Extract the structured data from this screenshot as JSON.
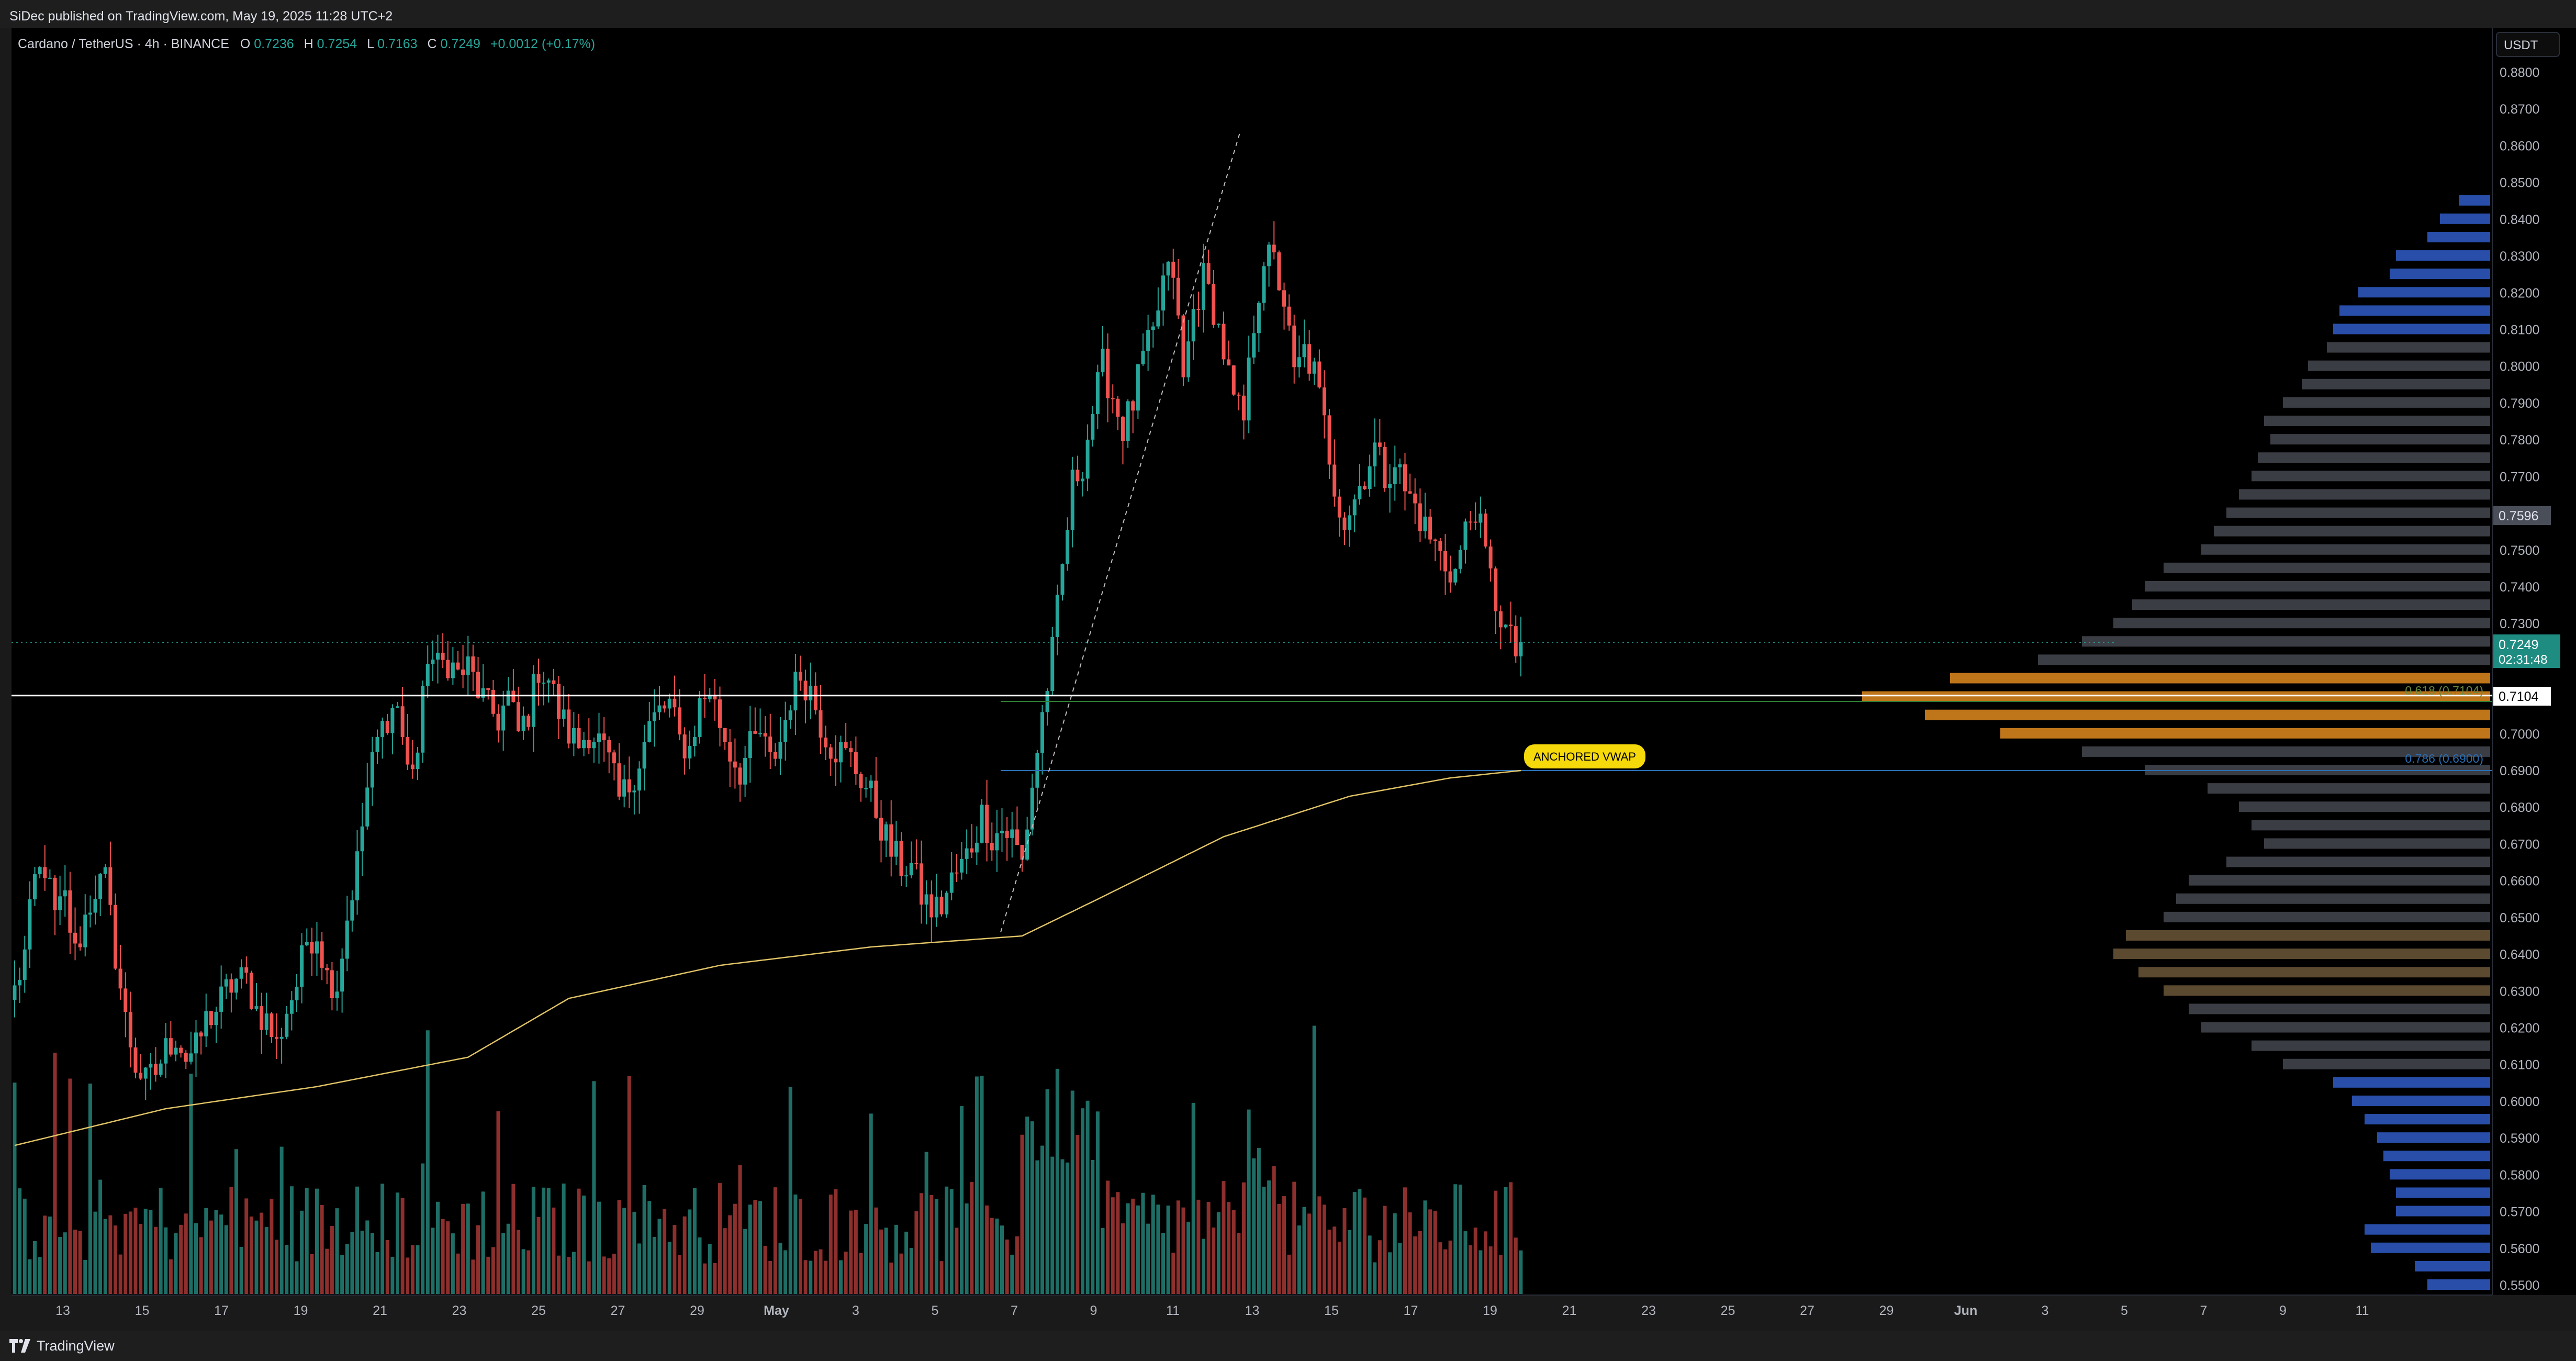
{
  "header": {
    "published": "SiDec published on TradingView.com, May 19, 2025 11:28 UTC+2"
  },
  "footer": {
    "brand": "TradingView"
  },
  "symbol_info": {
    "pair": "Cardano / TetherUS · 4h · BINANCE",
    "o_label": "O",
    "o_value": "0.7236",
    "h_label": "H",
    "h_value": "0.7254",
    "l_label": "L",
    "l_value": "0.7163",
    "c_label": "C",
    "c_value": "0.7249",
    "change": "+0.0012 (+0.17%)"
  },
  "currency_button": "USDT",
  "colors": {
    "up": "#26a69a",
    "down": "#ef5350",
    "vwap": "#e0c366",
    "profile_gray": "#454850",
    "profile_blue": "#2f5cc8",
    "profile_orange": "#e08a1e",
    "fib_green": "#2e7d32",
    "fib_blue": "#2a6fb5"
  },
  "price_badges": {
    "p1": "0.7596",
    "current": "0.7249",
    "countdown": "02:31:48",
    "line": "0.7104"
  },
  "annotations": {
    "anchored_vwap": "ANCHORED VWAP",
    "fib_786": "0.786 (0.6900)",
    "fib_618": "0.618 (0.7104)"
  },
  "chart_data": {
    "type": "candlestick",
    "symbol": "ADAUSDT",
    "interval": "4h",
    "ylim": [
      0.545,
      0.885
    ],
    "y_ticks": [
      "0.8800",
      "0.8700",
      "0.8600",
      "0.8500",
      "0.8400",
      "0.8300",
      "0.8200",
      "0.8100",
      "0.8000",
      "0.7900",
      "0.7800",
      "0.7700",
      "0.7600",
      "0.7500",
      "0.7400",
      "0.7300",
      "0.7200",
      "0.7100",
      "0.7000",
      "0.6900",
      "0.6800",
      "0.6700",
      "0.6600",
      "0.6500",
      "0.6400",
      "0.6300",
      "0.6200",
      "0.6100",
      "0.6000",
      "0.5900",
      "0.5800",
      "0.5700",
      "0.5600",
      "0.5500"
    ],
    "x_tick_labels": [
      "13",
      "15",
      "17",
      "19",
      "21",
      "23",
      "25",
      "27",
      "29",
      "May",
      "3",
      "5",
      "7",
      "9",
      "11",
      "13",
      "15",
      "17",
      "19",
      "21",
      "23",
      "25",
      "27",
      "29",
      "Jun",
      "3",
      "5",
      "7",
      "9",
      "11"
    ],
    "price_series_knots": [
      [
        0,
        0.63
      ],
      [
        2,
        0.64
      ],
      [
        4,
        0.66
      ],
      [
        6,
        0.664
      ],
      [
        8,
        0.65
      ],
      [
        10,
        0.655
      ],
      [
        12,
        0.64
      ],
      [
        14,
        0.65
      ],
      [
        16,
        0.658
      ],
      [
        18,
        0.66
      ],
      [
        20,
        0.64
      ],
      [
        22,
        0.622
      ],
      [
        24,
        0.61
      ],
      [
        26,
        0.605
      ],
      [
        28,
        0.608
      ],
      [
        30,
        0.614
      ],
      [
        32,
        0.618
      ],
      [
        34,
        0.612
      ],
      [
        36,
        0.614
      ],
      [
        38,
        0.622
      ],
      [
        40,
        0.625
      ],
      [
        42,
        0.63
      ],
      [
        44,
        0.633
      ],
      [
        46,
        0.633
      ],
      [
        48,
        0.625
      ],
      [
        50,
        0.622
      ],
      [
        52,
        0.615
      ],
      [
        54,
        0.625
      ],
      [
        56,
        0.632
      ],
      [
        58,
        0.644
      ],
      [
        60,
        0.646
      ],
      [
        62,
        0.634
      ],
      [
        64,
        0.632
      ],
      [
        66,
        0.65
      ],
      [
        68,
        0.665
      ],
      [
        70,
        0.685
      ],
      [
        72,
        0.698
      ],
      [
        74,
        0.705
      ],
      [
        76,
        0.708
      ],
      [
        78,
        0.69
      ],
      [
        80,
        0.695
      ],
      [
        82,
        0.722
      ],
      [
        84,
        0.718
      ],
      [
        86,
        0.72
      ],
      [
        88,
        0.716
      ],
      [
        90,
        0.718
      ],
      [
        92,
        0.712
      ],
      [
        94,
        0.707
      ],
      [
        96,
        0.704
      ],
      [
        98,
        0.71
      ],
      [
        100,
        0.7
      ],
      [
        102,
        0.706
      ],
      [
        104,
        0.718
      ],
      [
        106,
        0.715
      ],
      [
        108,
        0.706
      ],
      [
        110,
        0.7
      ],
      [
        112,
        0.697
      ],
      [
        114,
        0.701
      ],
      [
        116,
        0.698
      ],
      [
        118,
        0.692
      ],
      [
        120,
        0.682
      ],
      [
        122,
        0.686
      ],
      [
        124,
        0.693
      ],
      [
        126,
        0.702
      ],
      [
        128,
        0.706
      ],
      [
        130,
        0.708
      ],
      [
        132,
        0.698
      ],
      [
        134,
        0.696
      ],
      [
        136,
        0.708
      ],
      [
        138,
        0.712
      ],
      [
        140,
        0.703
      ],
      [
        142,
        0.695
      ],
      [
        144,
        0.69
      ],
      [
        146,
        0.696
      ],
      [
        148,
        0.7
      ],
      [
        150,
        0.692
      ],
      [
        152,
        0.698
      ],
      [
        154,
        0.71
      ],
      [
        156,
        0.716
      ],
      [
        158,
        0.712
      ],
      [
        160,
        0.703
      ],
      [
        162,
        0.697
      ],
      [
        164,
        0.695
      ],
      [
        166,
        0.693
      ],
      [
        168,
        0.688
      ],
      [
        170,
        0.683
      ],
      [
        172,
        0.675
      ],
      [
        174,
        0.668
      ],
      [
        176,
        0.664
      ],
      [
        178,
        0.664
      ],
      [
        180,
        0.656
      ],
      [
        182,
        0.652
      ],
      [
        184,
        0.653
      ],
      [
        186,
        0.66
      ],
      [
        188,
        0.664
      ],
      [
        190,
        0.67
      ],
      [
        192,
        0.678
      ],
      [
        194,
        0.672
      ],
      [
        196,
        0.674
      ],
      [
        198,
        0.672
      ],
      [
        200,
        0.665
      ],
      [
        202,
        0.686
      ],
      [
        204,
        0.705
      ],
      [
        206,
        0.722
      ],
      [
        208,
        0.745
      ],
      [
        210,
        0.768
      ],
      [
        212,
        0.774
      ],
      [
        214,
        0.788
      ],
      [
        216,
        0.8
      ],
      [
        218,
        0.792
      ],
      [
        220,
        0.783
      ],
      [
        222,
        0.79
      ],
      [
        224,
        0.802
      ],
      [
        226,
        0.808
      ],
      [
        228,
        0.823
      ],
      [
        230,
        0.826
      ],
      [
        232,
        0.796
      ],
      [
        234,
        0.815
      ],
      [
        236,
        0.824
      ],
      [
        238,
        0.816
      ],
      [
        240,
        0.804
      ],
      [
        242,
        0.79
      ],
      [
        244,
        0.785
      ],
      [
        246,
        0.812
      ],
      [
        248,
        0.83
      ],
      [
        250,
        0.828
      ],
      [
        252,
        0.818
      ],
      [
        254,
        0.797
      ],
      [
        256,
        0.804
      ],
      [
        258,
        0.798
      ],
      [
        260,
        0.784
      ],
      [
        262,
        0.768
      ],
      [
        264,
        0.758
      ],
      [
        266,
        0.764
      ],
      [
        268,
        0.771
      ],
      [
        270,
        0.778
      ],
      [
        272,
        0.77
      ],
      [
        274,
        0.775
      ],
      [
        276,
        0.766
      ],
      [
        278,
        0.762
      ],
      [
        280,
        0.756
      ],
      [
        282,
        0.751
      ],
      [
        284,
        0.746
      ],
      [
        286,
        0.744
      ],
      [
        288,
        0.755
      ],
      [
        290,
        0.762
      ],
      [
        292,
        0.748
      ],
      [
        294,
        0.736
      ],
      [
        296,
        0.728
      ],
      [
        298,
        0.722
      ],
      [
        299,
        0.7249
      ]
    ],
    "volume_range": [
      0,
      90
    ],
    "vwap_label": "ANCHORED VWAP",
    "horizontal_levels": [
      {
        "price": 0.7249,
        "label": "0.7249"
      },
      {
        "price": 0.7104,
        "label": "0.7104"
      },
      {
        "price": 0.7596,
        "label": "0.7596"
      },
      {
        "price": 0.69,
        "label": "0.786 (0.6900)"
      }
    ],
    "volume_profile": [
      {
        "price": 0.845,
        "size": 0.05
      },
      {
        "price": 0.84,
        "size": 0.08
      },
      {
        "price": 0.835,
        "size": 0.1
      },
      {
        "price": 0.83,
        "size": 0.15
      },
      {
        "price": 0.825,
        "size": 0.16
      },
      {
        "price": 0.82,
        "size": 0.21
      },
      {
        "price": 0.815,
        "size": 0.24
      },
      {
        "price": 0.81,
        "size": 0.25
      },
      {
        "price": 0.805,
        "size": 0.26
      },
      {
        "price": 0.8,
        "size": 0.29
      },
      {
        "price": 0.795,
        "size": 0.3
      },
      {
        "price": 0.79,
        "size": 0.33
      },
      {
        "price": 0.785,
        "size": 0.36
      },
      {
        "price": 0.78,
        "size": 0.35
      },
      {
        "price": 0.775,
        "size": 0.37
      },
      {
        "price": 0.77,
        "size": 0.38
      },
      {
        "price": 0.765,
        "size": 0.4
      },
      {
        "price": 0.76,
        "size": 0.42
      },
      {
        "price": 0.755,
        "size": 0.44
      },
      {
        "price": 0.75,
        "size": 0.46
      },
      {
        "price": 0.745,
        "size": 0.52
      },
      {
        "price": 0.74,
        "size": 0.55
      },
      {
        "price": 0.735,
        "size": 0.57
      },
      {
        "price": 0.73,
        "size": 0.6
      },
      {
        "price": 0.725,
        "size": 0.65
      },
      {
        "price": 0.72,
        "size": 0.72
      },
      {
        "price": 0.715,
        "size": 0.86
      },
      {
        "price": 0.71,
        "size": 1.0
      },
      {
        "price": 0.705,
        "size": 0.9
      },
      {
        "price": 0.7,
        "size": 0.78
      },
      {
        "price": 0.695,
        "size": 0.65
      },
      {
        "price": 0.69,
        "size": 0.55
      },
      {
        "price": 0.685,
        "size": 0.45
      },
      {
        "price": 0.68,
        "size": 0.4
      },
      {
        "price": 0.675,
        "size": 0.38
      },
      {
        "price": 0.67,
        "size": 0.36
      },
      {
        "price": 0.665,
        "size": 0.42
      },
      {
        "price": 0.66,
        "size": 0.48
      },
      {
        "price": 0.655,
        "size": 0.5
      },
      {
        "price": 0.65,
        "size": 0.52
      },
      {
        "price": 0.645,
        "size": 0.58
      },
      {
        "price": 0.64,
        "size": 0.6
      },
      {
        "price": 0.635,
        "size": 0.56
      },
      {
        "price": 0.63,
        "size": 0.52
      },
      {
        "price": 0.625,
        "size": 0.48
      },
      {
        "price": 0.62,
        "size": 0.46
      },
      {
        "price": 0.615,
        "size": 0.38
      },
      {
        "price": 0.61,
        "size": 0.33
      },
      {
        "price": 0.605,
        "size": 0.25
      },
      {
        "price": 0.6,
        "size": 0.22
      },
      {
        "price": 0.595,
        "size": 0.2
      },
      {
        "price": 0.59,
        "size": 0.18
      },
      {
        "price": 0.585,
        "size": 0.17
      },
      {
        "price": 0.58,
        "size": 0.16
      },
      {
        "price": 0.575,
        "size": 0.15
      },
      {
        "price": 0.57,
        "size": 0.15
      },
      {
        "price": 0.565,
        "size": 0.2
      },
      {
        "price": 0.56,
        "size": 0.19
      },
      {
        "price": 0.555,
        "size": 0.12
      },
      {
        "price": 0.55,
        "size": 0.1
      }
    ]
  }
}
